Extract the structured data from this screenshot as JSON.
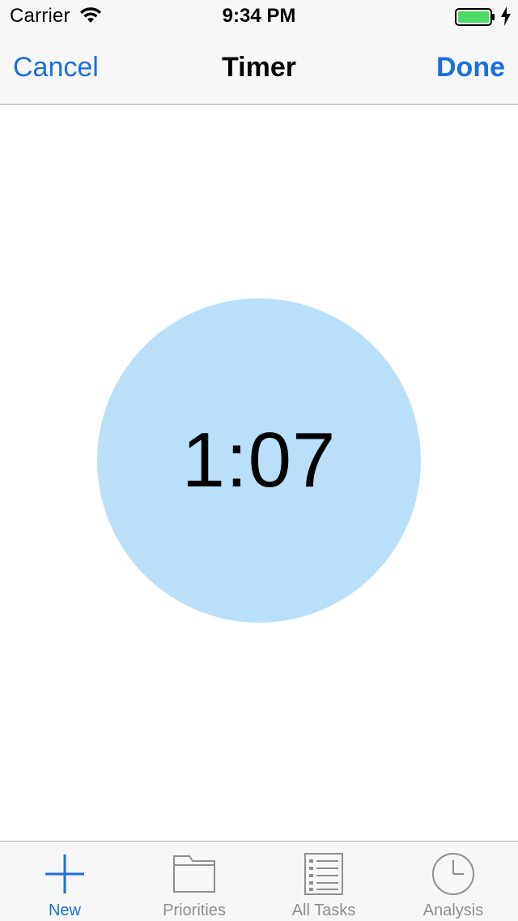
{
  "status_bar": {
    "carrier": "Carrier",
    "time": "9:34 PM",
    "wifi_icon": "wifi-icon",
    "battery_icon": "battery-icon",
    "charging_icon": "charging-bolt-icon",
    "battery_level": 1.0
  },
  "nav_bar": {
    "cancel_label": "Cancel",
    "title": "Timer",
    "done_label": "Done"
  },
  "timer": {
    "value": "1:07"
  },
  "tab_bar": {
    "items": [
      {
        "label": "New",
        "icon": "plus-icon",
        "active": true
      },
      {
        "label": "Priorities",
        "icon": "folder-icon",
        "active": false
      },
      {
        "label": "All Tasks",
        "icon": "list-icon",
        "active": false
      },
      {
        "label": "Analysis",
        "icon": "clock-icon",
        "active": false
      }
    ]
  },
  "colors": {
    "accent": "#1a6fe0",
    "timer_circle": "#b9e0f8",
    "chrome_background": "#f7f7f7",
    "inactive_tab": "#8e8e8e",
    "battery_fill": "#4cd964"
  }
}
